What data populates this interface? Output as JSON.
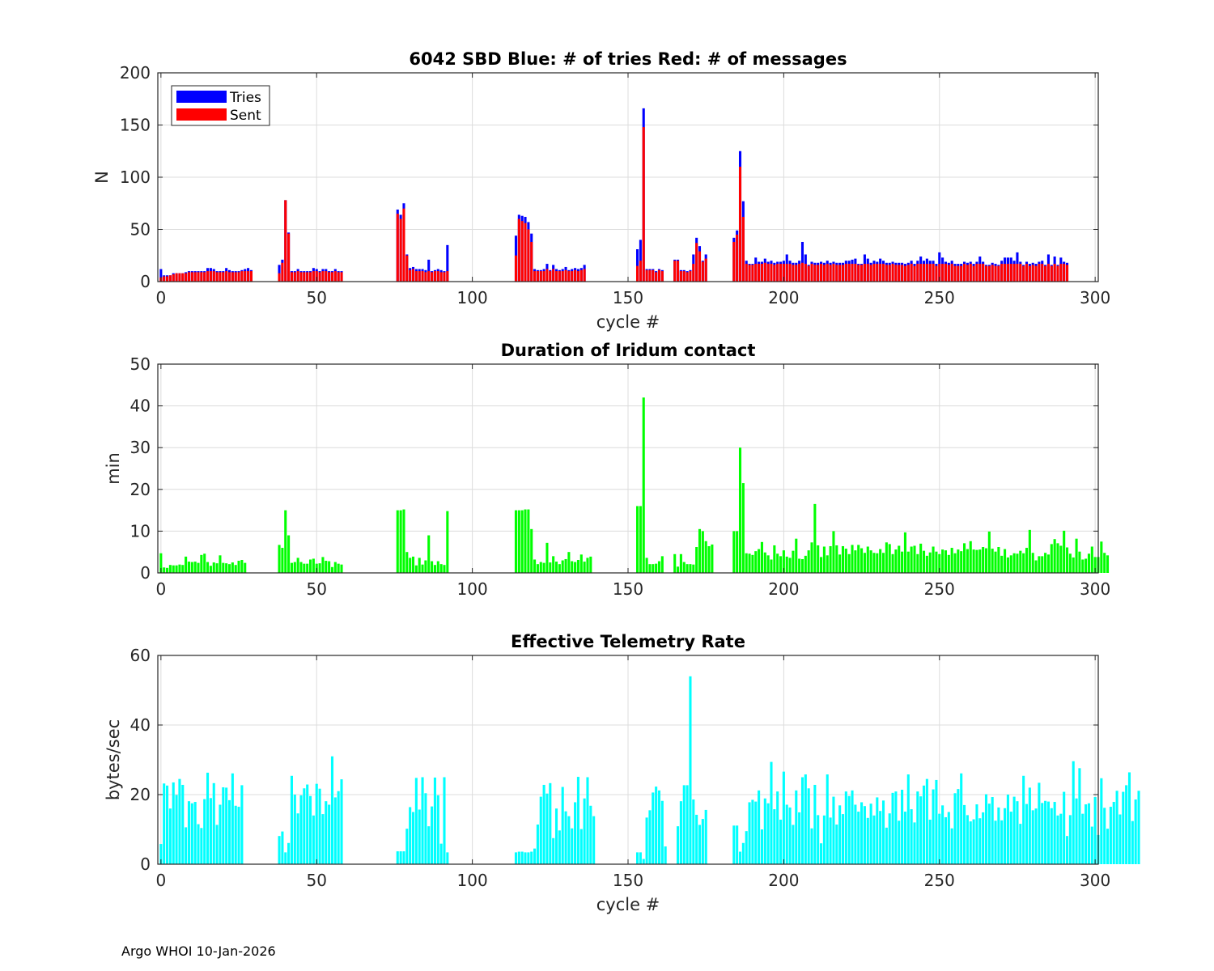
{
  "footer": "Argo WHOI 10-Jan-2026",
  "colors": {
    "tries": "#0000ff",
    "sent": "#ff0000",
    "duration": "#00ff00",
    "rate": "#00ffff",
    "axis": "#262626",
    "grid": "#dcdcdc"
  },
  "chart_data": [
    {
      "type": "bar",
      "title": "6042 SBD  Blue: # of tries   Red: # of messages",
      "xlabel": "cycle #",
      "ylabel": "N",
      "xlim": [
        -1,
        301
      ],
      "ylim": [
        0,
        200
      ],
      "xticks": [
        0,
        50,
        100,
        150,
        200,
        250,
        300
      ],
      "yticks": [
        0,
        50,
        100,
        150,
        200
      ],
      "legend": {
        "location": "top-left",
        "entries": [
          "Tries",
          "Sent"
        ]
      },
      "segments": [
        {
          "start": 0,
          "tries": [
            12,
            6,
            6,
            6,
            8,
            8,
            8,
            8,
            9,
            10,
            10,
            10,
            10,
            10,
            10,
            13,
            13,
            12,
            10,
            10,
            10,
            13,
            11,
            10,
            10,
            10,
            11,
            12,
            13,
            11
          ],
          "sent": [
            4,
            5,
            5,
            6,
            7,
            8,
            8,
            8,
            8,
            9,
            9,
            9,
            9,
            9,
            9,
            10,
            10,
            10,
            9,
            9,
            9,
            10,
            9,
            9,
            9,
            9,
            10,
            10,
            10,
            10
          ]
        },
        {
          "start": 38,
          "tries": [
            16,
            21,
            78,
            47,
            10,
            10,
            12,
            10,
            10,
            10,
            10,
            13,
            12,
            10,
            12,
            12,
            10,
            10,
            12,
            10,
            10
          ],
          "sent": [
            8,
            18,
            78,
            46,
            9,
            9,
            10,
            9,
            9,
            9,
            9,
            10,
            10,
            9,
            10,
            10,
            9,
            9,
            10,
            9,
            9
          ]
        },
        {
          "start": 76,
          "tries": [
            69,
            64,
            75,
            26,
            13,
            14,
            12,
            12,
            12,
            11,
            21,
            10,
            11,
            12,
            11,
            10,
            35
          ],
          "sent": [
            65,
            60,
            70,
            25,
            11,
            12,
            10,
            10,
            10,
            9,
            10,
            9,
            10,
            10,
            9,
            9,
            10
          ]
        },
        {
          "start": 114,
          "tries": [
            44,
            64,
            63,
            62,
            57,
            46,
            12,
            11,
            11,
            12,
            17,
            11,
            16,
            12,
            11,
            12,
            14,
            11,
            12,
            13,
            12,
            13,
            16
          ],
          "sent": [
            25,
            60,
            58,
            56,
            50,
            38,
            10,
            10,
            10,
            10,
            12,
            10,
            12,
            10,
            10,
            10,
            11,
            10,
            10,
            11,
            10,
            11,
            12
          ]
        },
        {
          "start": 153,
          "tries": [
            31,
            40,
            166,
            12,
            12,
            12,
            10,
            12,
            11
          ],
          "sent": [
            15,
            20,
            148,
            11,
            11,
            11,
            9,
            11,
            10
          ]
        },
        {
          "start": 165,
          "tries": [
            21,
            21,
            11,
            11,
            10,
            11,
            26,
            42,
            34,
            20,
            26
          ],
          "sent": [
            20,
            20,
            10,
            10,
            9,
            10,
            17,
            37,
            29,
            19,
            22
          ]
        },
        {
          "start": 184,
          "tries": [
            42,
            49,
            125,
            77,
            20,
            17,
            17,
            23,
            19,
            19,
            22,
            19,
            20,
            18,
            19,
            19,
            20,
            26,
            20,
            18,
            18,
            20,
            38,
            26,
            16,
            19,
            18,
            18,
            19,
            18,
            20,
            18,
            19,
            18,
            18,
            18,
            20,
            20,
            21,
            22,
            17,
            17,
            26,
            22,
            18,
            20,
            19,
            22,
            20,
            18,
            18,
            19,
            18,
            18,
            18,
            17,
            18,
            20,
            17,
            20,
            24,
            20,
            22,
            20,
            20,
            17,
            28,
            23,
            19,
            18,
            20,
            17,
            17,
            17,
            19,
            18,
            19,
            17,
            19,
            24,
            19,
            16,
            16,
            18,
            17,
            16,
            20,
            23,
            23,
            23,
            20,
            28,
            19,
            16,
            19,
            17,
            18,
            17,
            19,
            20,
            16,
            26,
            16,
            24,
            16,
            23,
            19,
            18
          ],
          "sent": [
            38,
            45,
            110,
            62,
            17,
            16,
            16,
            17,
            17,
            17,
            18,
            17,
            17,
            16,
            17,
            17,
            17,
            17,
            17,
            16,
            16,
            17,
            18,
            17,
            15,
            17,
            16,
            16,
            17,
            16,
            17,
            16,
            17,
            16,
            16,
            16,
            17,
            17,
            17,
            17,
            16,
            16,
            17,
            17,
            16,
            17,
            17,
            17,
            17,
            16,
            16,
            17,
            16,
            16,
            16,
            15,
            16,
            17,
            15,
            17,
            17,
            17,
            17,
            17,
            17,
            15,
            17,
            17,
            17,
            16,
            17,
            15,
            15,
            15,
            17,
            16,
            17,
            15,
            17,
            17,
            17,
            15,
            15,
            16,
            15,
            15,
            17,
            17,
            17,
            17,
            17,
            17,
            17,
            15,
            17,
            15,
            16,
            15,
            17,
            17,
            15,
            17,
            15,
            17,
            15,
            17,
            17,
            16
          ]
        }
      ]
    },
    {
      "type": "bar",
      "title": "Duration of Iridum contact",
      "xlabel": "",
      "ylabel": "min",
      "xlim": [
        -1,
        301
      ],
      "ylim": [
        0,
        50
      ],
      "xticks": [
        0,
        50,
        100,
        150,
        200,
        250,
        300
      ],
      "yticks": [
        0,
        10,
        20,
        30,
        40,
        50
      ],
      "segments": [
        {
          "start": 0,
          "values": [
            4.7,
            1.3,
            1.2,
            1.9,
            1.8,
            1.8,
            2.0,
            1.9,
            3.9,
            2.7,
            2.6,
            2.7,
            2.4,
            4.3,
            4.6,
            2.6,
            1.7,
            2.5,
            2.3,
            4.2,
            2.4,
            2.3,
            2.1,
            2.5,
            1.9,
            2.9,
            3.1,
            2.4
          ]
        },
        {
          "start": 38,
          "values": [
            6.7,
            6.0,
            15.0,
            9.0,
            2.4,
            2.6,
            3.6,
            2.6,
            2.2,
            2.2,
            3.2,
            3.4,
            2.2,
            2.3,
            3.8,
            2.9,
            2.8,
            1.4,
            2.6,
            2.2,
            2.0
          ]
        },
        {
          "start": 76,
          "values": [
            15.0,
            15.0,
            15.2,
            5.0,
            3.6,
            3.9,
            1.8,
            3.6,
            2.0,
            3.0,
            9.0,
            2.8,
            1.9,
            2.8,
            2.1,
            1.9,
            14.8
          ]
        },
        {
          "start": 114,
          "values": [
            15.0,
            15.0,
            15.0,
            15.2,
            15.2,
            10.5,
            3.2,
            2.1,
            2.6,
            2.4,
            7.2,
            2.5,
            4.0,
            2.7,
            2.1,
            3.0,
            3.3,
            5.0,
            2.8,
            2.6,
            3.1,
            4.4,
            2.7,
            3.6,
            3.9
          ]
        },
        {
          "start": 153,
          "values": [
            16.0,
            16.0,
            42.0,
            3.6,
            2.1,
            2.1,
            2.2,
            2.8,
            4.0
          ]
        },
        {
          "start": 165,
          "values": [
            4.5,
            1.5,
            4.5,
            2.6,
            2.1,
            2.1,
            2.0,
            6.2,
            10.5,
            10.0,
            7.6,
            6.4,
            6.8
          ]
        },
        {
          "start": 184,
          "values": [
            10.0,
            10.0,
            30.0,
            21.5,
            4.7,
            4.6,
            4.3,
            5.2,
            5.7,
            7.4,
            4.9,
            4.2,
            3.2,
            6.6,
            4.6,
            4.0,
            5.4,
            3.9,
            3.6,
            5.3,
            8.2,
            3.4,
            3.3,
            4.1,
            5.4,
            7.3,
            16.5,
            6.6,
            3.8,
            6.3,
            4.2,
            6.4,
            10.0,
            6.6,
            4.4,
            6.4,
            5.8,
            4.5,
            6.7,
            5.4,
            6.7,
            5.9,
            4.8,
            6.3,
            5.4,
            4.8,
            4.7,
            5.7,
            4.8,
            7.3,
            6.9,
            4.5,
            5.6,
            6.5,
            5.1,
            9.7,
            5.1,
            6.3,
            6.5,
            4.5,
            7.0,
            5.3,
            4.1,
            4.9,
            6.3,
            5.1,
            4.5,
            5.6,
            5.4,
            4.3,
            6.0,
            4.7,
            5.6,
            5.2,
            7.1,
            5.7,
            7.6,
            5.6,
            5.5,
            5.6,
            6.2,
            5.9,
            9.9,
            5.8,
            5.1,
            6.2,
            4.1,
            5.7,
            3.7,
            4.2,
            4.7,
            4.6,
            5.3,
            4.7,
            6.0,
            10.3,
            4.8,
            3.0,
            4.0,
            4.0,
            4.8,
            4.4,
            6.9,
            8.1,
            7.1,
            6.5,
            10.1,
            6.1,
            4.6,
            3.7,
            8.2,
            5.1,
            3.2,
            3.4,
            4.6,
            6.3,
            3.8,
            3.8,
            7.5,
            4.8,
            4.2
          ]
        }
      ]
    },
    {
      "type": "bar",
      "title": "Effective Telemetry Rate",
      "xlabel": "cycle #",
      "ylabel": "bytes/sec",
      "xlim": [
        -1,
        301
      ],
      "ylim": [
        0,
        60
      ],
      "xticks": [
        0,
        50,
        100,
        150,
        200,
        250,
        300
      ],
      "yticks": [
        0,
        20,
        40,
        60
      ],
      "segments": [
        {
          "start": 0,
          "values": [
            5.8,
            23.2,
            22.6,
            16.0,
            23.5,
            19.9,
            24.5,
            22.8,
            10.6,
            18.1,
            17.5,
            17.9,
            11.5,
            10.4,
            18.7,
            26.3,
            19.0,
            23.3,
            11.3,
            17.1,
            22.1,
            22.0,
            18.4,
            26.1,
            16.8,
            16.5,
            22.7
          ]
        },
        {
          "start": 38,
          "values": [
            8.1,
            9.4,
            3.4,
            6.1,
            25.4,
            20.0,
            14.6,
            19.8,
            21.8,
            22.9,
            19.6,
            14.0,
            23.1,
            21.7,
            14.4,
            18.1,
            17.1,
            31.0,
            19.2,
            21.0,
            24.4
          ]
        },
        {
          "start": 76,
          "values": [
            3.7,
            3.7,
            3.7,
            10.2,
            16.4,
            15.0,
            24.8,
            15.7,
            25.0,
            20.4,
            10.9,
            16.6,
            24.9,
            19.8,
            5.9,
            25.0,
            3.4
          ]
        },
        {
          "start": 114,
          "values": [
            3.4,
            3.6,
            3.6,
            3.4,
            3.4,
            3.6,
            4.5,
            11.4,
            19.4,
            22.8,
            20.3,
            23.3,
            7.5,
            16.0,
            9.7,
            22.2,
            15.2,
            13.8,
            10.3,
            17.8,
            25.1,
            10.1,
            18.9,
            25.0,
            16.8,
            13.8
          ]
        },
        {
          "start": 153,
          "values": [
            3.4,
            3.4,
            1.5,
            13.4,
            15.5,
            20.6,
            22.3,
            21.2,
            18.2,
            5.1
          ]
        },
        {
          "start": 166,
          "values": [
            10.9,
            18.1,
            22.7,
            22.7,
            54.0,
            18.6,
            14.2,
            11.3,
            13.0,
            15.6
          ]
        },
        {
          "start": 184,
          "values": [
            11.1,
            11.1,
            3.6,
            6.1,
            9.5,
            17.8,
            18.5,
            18.0,
            21.2,
            10.0,
            18.9,
            17.5,
            29.4,
            15.8,
            20.9,
            12.8,
            26.6,
            17.1,
            16.3,
            11.3,
            21.2,
            14.9,
            25.0,
            25.8,
            21.8,
            10.3,
            22.8,
            14.1,
            6.0,
            14.0,
            25.8,
            13.4,
            19.4,
            11.4,
            16.9,
            14.4,
            20.9,
            19.6,
            21.2,
            17.1,
            15.1,
            17.8,
            16.7,
            13.3,
            17.4,
            14.0,
            19.2,
            15.3,
            18.3,
            10.5,
            14.6,
            20.5,
            20.9,
            12.5,
            21.4,
            15.1,
            25.8,
            15.8,
            12.0,
            20.9,
            19.5,
            22.6,
            24.5,
            12.8,
            21.5,
            24.2,
            14.5,
            16.9,
            13.5,
            15.0,
            10.3,
            20.4,
            21.6,
            26.1,
            17.0,
            14.1,
            12.3,
            12.9,
            17.2,
            13.2,
            14.9,
            20.1,
            17.4,
            19.3,
            12.5,
            16.3,
            12.6,
            16.1,
            20.0,
            15.1,
            19.4,
            18.1,
            11.6,
            25.4,
            17.3,
            22.0,
            15.5,
            16.0,
            23.4,
            17.6,
            18.2,
            18.0,
            16.1,
            17.9,
            14.0,
            14.5,
            20.8,
            8.1,
            14.1,
            29.6,
            18.9,
            27.6,
            14.5,
            17.2,
            17.5,
            10.8,
            19.3,
            8.4,
            24.7,
            16.2,
            10.2,
            16.5,
            17.9,
            21.1,
            14.3,
            20.8,
            22.7,
            26.4,
            12.4,
            18.6,
            21.1
          ]
        }
      ]
    }
  ]
}
